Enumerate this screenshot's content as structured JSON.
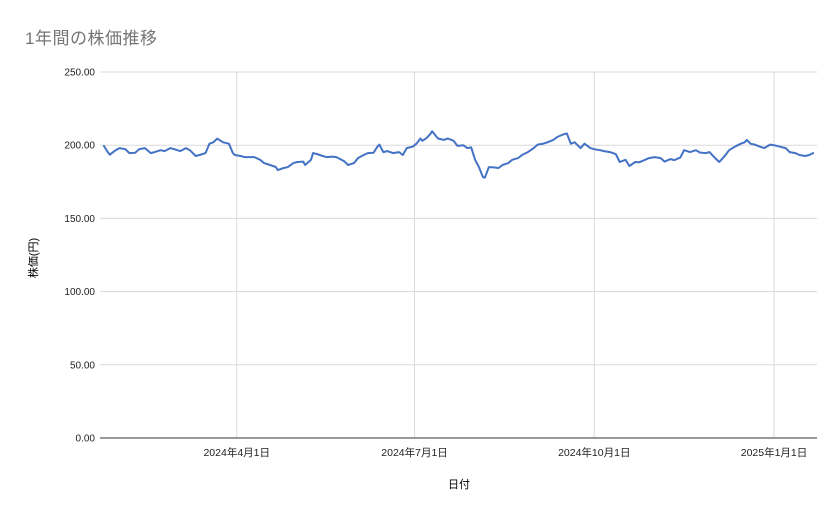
{
  "chart": {
    "background": "#ffffff"
  },
  "chart_data": {
    "type": "line",
    "title": "1年間の株価推移",
    "title_color": "#757575",
    "xlabel": "日付",
    "ylabel": "株価(円)",
    "ylim": [
      0,
      250
    ],
    "grid": true,
    "grid_color": "#dadada",
    "axis_line_color": "#333333",
    "tick_label_color": "#222222",
    "legend": "none",
    "y_ticks": [
      {
        "value": 0,
        "label": "0.00"
      },
      {
        "value": 50,
        "label": "50.00"
      },
      {
        "value": 100,
        "label": "100.00"
      },
      {
        "value": 150,
        "label": "150.00"
      },
      {
        "value": 200,
        "label": "200.00"
      },
      {
        "value": 250,
        "label": "250.00"
      }
    ],
    "x_axis": {
      "span_days": 367,
      "ticks": [
        {
          "day": 70,
          "label": "2024年4月1日"
        },
        {
          "day": 161,
          "label": "2024年7月1日"
        },
        {
          "day": 253,
          "label": "2024年10月1日"
        },
        {
          "day": 345,
          "label": "2025年1月1日"
        }
      ]
    },
    "series": [
      {
        "name": "株価",
        "color": "#4472c4",
        "points": [
          [
            2,
            199.5
          ],
          [
            4,
            195.3
          ],
          [
            5,
            193.5
          ],
          [
            8,
            196.6
          ],
          [
            10,
            198
          ],
          [
            13,
            197.3
          ],
          [
            15,
            194.6
          ],
          [
            18,
            194.8
          ],
          [
            20,
            197.3
          ],
          [
            23,
            198
          ],
          [
            26,
            194.6
          ],
          [
            28,
            195.3
          ],
          [
            31,
            196.6
          ],
          [
            33,
            196
          ],
          [
            36,
            198
          ],
          [
            38,
            197.3
          ],
          [
            41,
            196
          ],
          [
            44,
            198
          ],
          [
            46,
            196.6
          ],
          [
            49,
            192.6
          ],
          [
            51,
            193.3
          ],
          [
            54,
            194.6
          ],
          [
            56,
            201
          ],
          [
            58,
            202
          ],
          [
            60,
            204.5
          ],
          [
            63,
            202
          ],
          [
            66,
            201
          ],
          [
            68,
            194.6
          ],
          [
            69,
            193.3
          ],
          [
            72,
            192.6
          ],
          [
            74,
            191.9
          ],
          [
            77,
            191.9
          ],
          [
            79,
            191.9
          ],
          [
            82,
            190
          ],
          [
            84,
            187.8
          ],
          [
            87,
            186.5
          ],
          [
            90,
            185.1
          ],
          [
            91,
            183
          ],
          [
            94,
            184.4
          ],
          [
            96,
            185
          ],
          [
            99,
            187.8
          ],
          [
            101,
            188.5
          ],
          [
            104,
            188.8
          ],
          [
            105,
            186.5
          ],
          [
            108,
            190
          ],
          [
            109,
            194.6
          ],
          [
            111,
            194
          ],
          [
            114,
            192.6
          ],
          [
            116,
            191.9
          ],
          [
            119,
            192.2
          ],
          [
            121,
            191.9
          ],
          [
            123,
            190.5
          ],
          [
            125,
            189
          ],
          [
            127,
            186.5
          ],
          [
            130,
            187.8
          ],
          [
            132,
            191.2
          ],
          [
            135,
            193.3
          ],
          [
            137,
            194.6
          ],
          [
            140,
            194.8
          ],
          [
            142,
            199
          ],
          [
            143,
            200.4
          ],
          [
            145,
            195.3
          ],
          [
            147,
            196
          ],
          [
            150,
            194.6
          ],
          [
            153,
            195.3
          ],
          [
            155,
            193.3
          ],
          [
            157,
            198
          ],
          [
            160,
            199
          ],
          [
            162,
            201
          ],
          [
            164,
            204.6
          ],
          [
            165,
            203
          ],
          [
            167,
            204.8
          ],
          [
            169,
            207.5
          ],
          [
            170,
            209.5
          ],
          [
            173,
            204.6
          ],
          [
            176,
            203.6
          ],
          [
            178,
            204.6
          ],
          [
            181,
            203
          ],
          [
            183,
            199.5
          ],
          [
            186,
            200
          ],
          [
            188,
            198
          ],
          [
            190,
            198.5
          ],
          [
            192,
            190
          ],
          [
            194,
            185
          ],
          [
            196,
            178.3
          ],
          [
            197,
            177.8
          ],
          [
            199,
            185
          ],
          [
            201,
            185
          ],
          [
            204,
            184.4
          ],
          [
            206,
            186.5
          ],
          [
            209,
            187.8
          ],
          [
            211,
            190
          ],
          [
            214,
            191.2
          ],
          [
            216,
            193.3
          ],
          [
            219,
            195.3
          ],
          [
            222,
            198
          ],
          [
            224,
            200.4
          ],
          [
            227,
            201.1
          ],
          [
            229,
            202
          ],
          [
            232,
            203.6
          ],
          [
            234,
            205.6
          ],
          [
            237,
            207.3
          ],
          [
            239,
            208
          ],
          [
            241,
            201
          ],
          [
            243,
            202
          ],
          [
            246,
            198
          ],
          [
            248,
            201
          ],
          [
            251,
            198
          ],
          [
            253,
            197.3
          ],
          [
            256,
            196.6
          ],
          [
            258,
            196
          ],
          [
            261,
            195.3
          ],
          [
            264,
            193.9
          ],
          [
            266,
            188.5
          ],
          [
            269,
            190
          ],
          [
            271,
            185.8
          ],
          [
            274,
            188.5
          ],
          [
            276,
            188.3
          ],
          [
            279,
            190
          ],
          [
            281,
            191.2
          ],
          [
            284,
            191.9
          ],
          [
            287,
            191.2
          ],
          [
            289,
            188.8
          ],
          [
            292,
            190.5
          ],
          [
            294,
            189.8
          ],
          [
            297,
            191.5
          ],
          [
            299,
            196.6
          ],
          [
            302,
            195.3
          ],
          [
            305,
            196.6
          ],
          [
            307,
            195
          ],
          [
            310,
            194.6
          ],
          [
            312,
            195.3
          ],
          [
            315,
            191
          ],
          [
            317,
            188.5
          ],
          [
            320,
            193
          ],
          [
            322,
            196.6
          ],
          [
            325,
            199
          ],
          [
            328,
            201
          ],
          [
            330,
            202
          ],
          [
            331,
            203.6
          ],
          [
            333,
            201
          ],
          [
            335,
            200.4
          ],
          [
            338,
            198.9
          ],
          [
            340,
            198
          ],
          [
            343,
            200.4
          ],
          [
            345,
            200
          ],
          [
            348,
            199
          ],
          [
            351,
            198
          ],
          [
            353,
            195.3
          ],
          [
            356,
            194.6
          ],
          [
            358,
            193.3
          ],
          [
            361,
            192.6
          ],
          [
            363,
            193.3
          ],
          [
            365,
            194.6
          ]
        ]
      }
    ]
  }
}
